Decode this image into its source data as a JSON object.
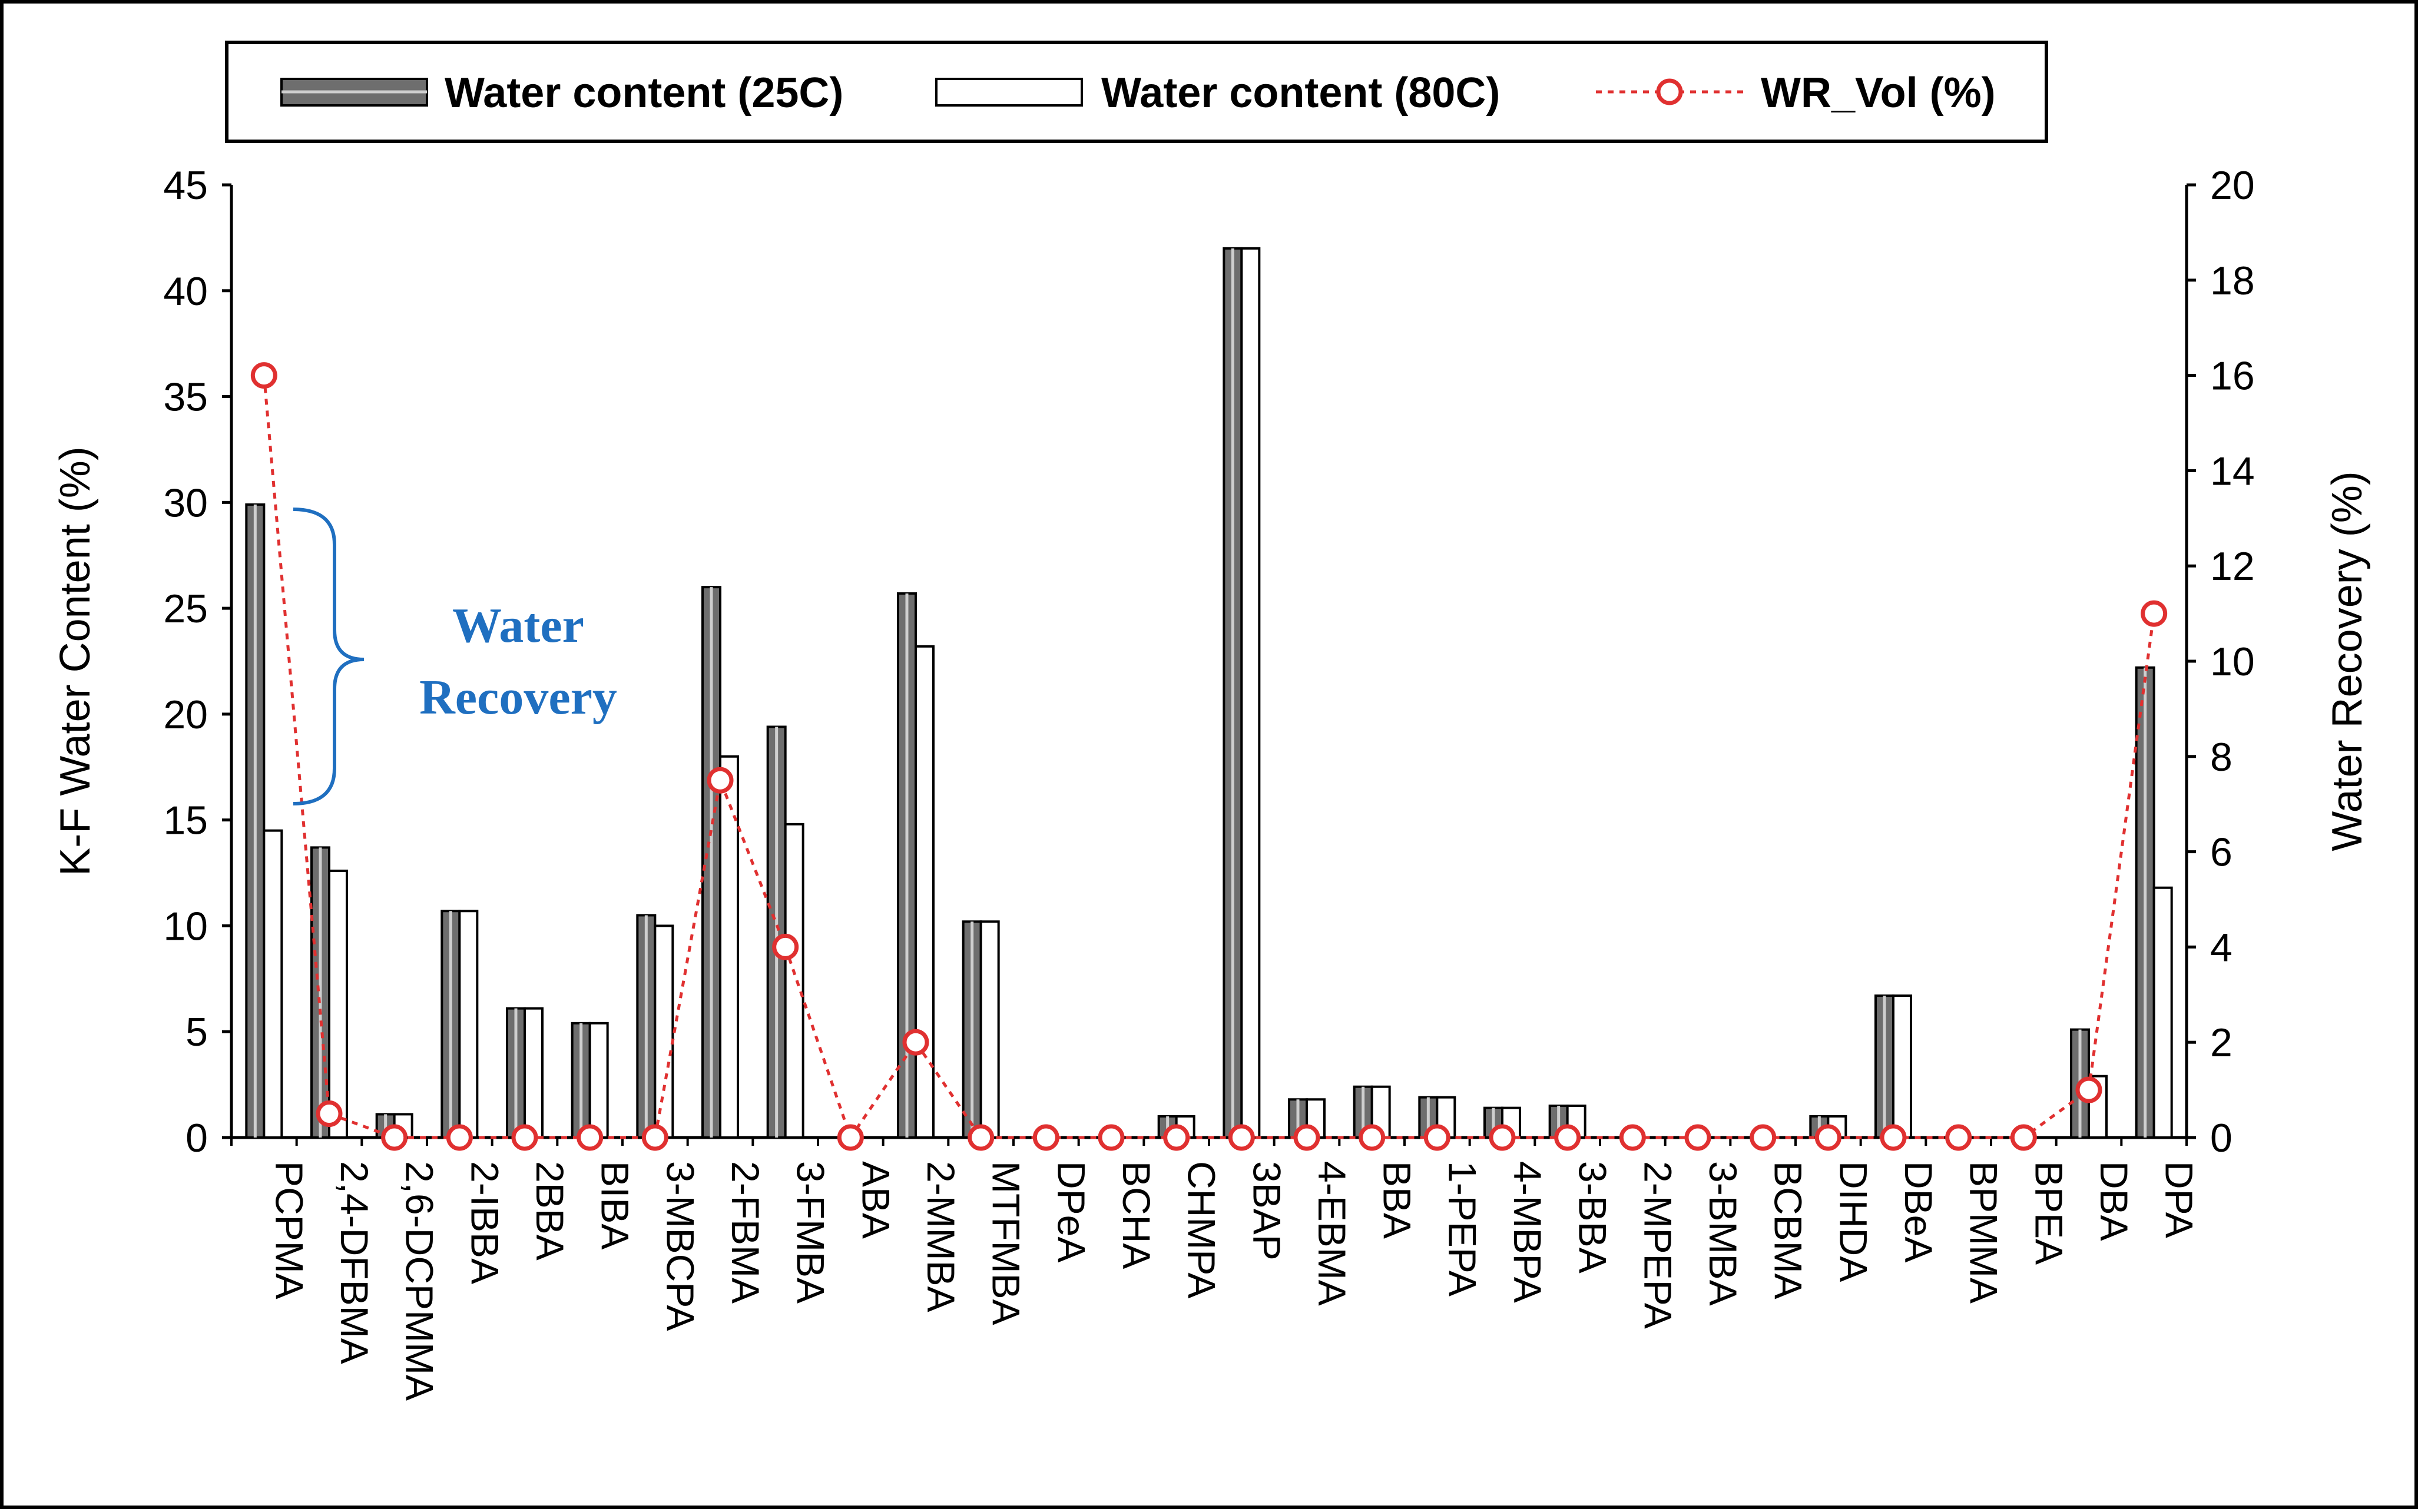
{
  "chart_data": {
    "type": "bar",
    "categories": [
      "PCPMA",
      "2,4-DFBMA",
      "2,6-DCPMMA",
      "2-IBBA",
      "2BBA",
      "BIBA",
      "3-MBCPA",
      "2-FBMA",
      "3-FMBA",
      "ABA",
      "2-MMBA",
      "MTFMBA",
      "DPeA",
      "BCHA",
      "CHMPA",
      "3BAP",
      "4-EBMA",
      "BBA",
      "1-PEPA",
      "4-MBPA",
      "3-BBA",
      "2-MPEPA",
      "3-BMBA",
      "BCBMA",
      "DIHDA",
      "DBeA",
      "BPMMA",
      "BPEA",
      "DBA",
      "DPA"
    ],
    "series": [
      {
        "name": "Water content (25C)",
        "kind": "bar",
        "axis": "left",
        "values": [
          29.9,
          13.7,
          1.1,
          10.7,
          6.1,
          5.4,
          10.5,
          26.0,
          19.4,
          0,
          25.7,
          10.2,
          0,
          0,
          1.0,
          42.0,
          1.8,
          2.4,
          1.9,
          1.4,
          1.5,
          0,
          0,
          0,
          1.0,
          6.7,
          0,
          0,
          5.1,
          22.2
        ]
      },
      {
        "name": "Water content (80C)",
        "kind": "bar",
        "axis": "left",
        "values": [
          14.5,
          12.6,
          1.1,
          10.7,
          6.1,
          5.4,
          10.0,
          18.0,
          14.8,
          0,
          23.2,
          10.2,
          0,
          0,
          1.0,
          42.0,
          1.8,
          2.4,
          1.9,
          1.4,
          1.5,
          0,
          0,
          0,
          1.0,
          6.7,
          0,
          0,
          2.9,
          11.8
        ]
      },
      {
        "name": "WR_Vol (%)",
        "kind": "line",
        "axis": "right",
        "values": [
          16.0,
          0.5,
          0,
          0,
          0,
          0,
          0,
          7.5,
          4.0,
          0,
          2.0,
          0,
          0,
          0,
          0,
          0,
          0,
          0,
          0,
          0,
          0,
          0,
          0,
          0,
          0,
          0,
          0,
          0,
          1.0,
          11.0
        ]
      }
    ],
    "ylabel": "K-F Water Content (%)",
    "y2label": "Water Recovery (%)",
    "ylim": [
      0,
      45
    ],
    "y2lim": [
      0,
      20
    ],
    "yticks": [
      "0",
      "5",
      "10",
      "15",
      "20",
      "25",
      "30",
      "35",
      "40",
      "45"
    ],
    "y2ticks": [
      "0",
      "2",
      "4",
      "6",
      "8",
      "10",
      "12",
      "14",
      "16",
      "18",
      "20"
    ],
    "legend_position": "top",
    "grid": false,
    "annotation": {
      "line1": "Water",
      "line2": "Recovery",
      "color": "#1f6fc0"
    },
    "colors": {
      "bar25": "#6e6e6e",
      "bar80": "#ffffff",
      "line": "#e03030",
      "annotation": "#1f6fc0"
    }
  }
}
